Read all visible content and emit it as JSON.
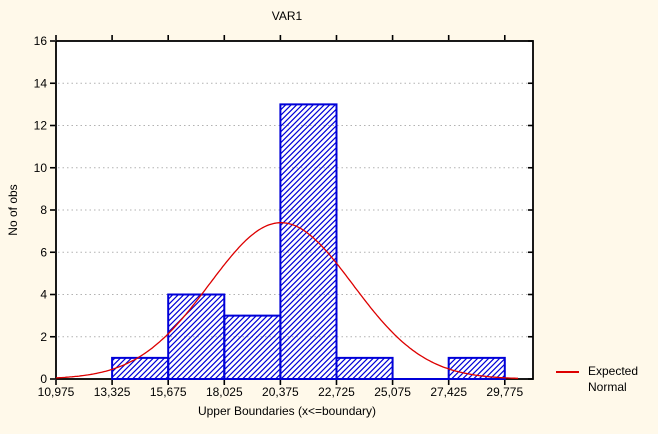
{
  "window": {
    "background_color": "#FFF9EA",
    "plot_background_color": "#FFFFFF"
  },
  "chart": {
    "title": "VAR1",
    "x_axis_label": "Upper Boundaries (x<=boundary)",
    "y_axis_label": "No of obs",
    "legend": {
      "line1": "Expected",
      "line2": "Normal",
      "swatch_color": "#DD0000"
    }
  },
  "chart_data": {
    "type": "bar",
    "title": "VAR1",
    "xlabel": "Upper Boundaries (x<=boundary)",
    "ylabel": "No of obs",
    "bin_edges": [
      13325,
      15675,
      18025,
      20375,
      22725,
      25075,
      27425,
      29775
    ],
    "counts": [
      1,
      4,
      3,
      13,
      1,
      0,
      1
    ],
    "x_ticks": [
      {
        "value": 10975,
        "label": "10,975"
      },
      {
        "value": 13325,
        "label": "13,325"
      },
      {
        "value": 15675,
        "label": "15,675"
      },
      {
        "value": 18025,
        "label": "18,025"
      },
      {
        "value": 20375,
        "label": "20,375"
      },
      {
        "value": 22725,
        "label": "22,725"
      },
      {
        "value": 25075,
        "label": "25,075"
      },
      {
        "value": 27425,
        "label": "27,425"
      },
      {
        "value": 29775,
        "label": "29,775"
      }
    ],
    "y_ticks": [
      0,
      2,
      4,
      6,
      8,
      10,
      12,
      14,
      16
    ],
    "grid_y": [
      2,
      4,
      6,
      8,
      10,
      12,
      14
    ],
    "xlim": [
      10975,
      30957
    ],
    "ylim": [
      0,
      16
    ],
    "grid": "horizontal-dotted",
    "legend_position": "right-bottom",
    "normal_curve": {
      "label": "Expected Normal",
      "mean": 20400,
      "sigma": 3000,
      "peak": 7.4,
      "x_start": 10975,
      "x_end": 30330,
      "color": "#DD0000"
    },
    "colors": {
      "bar_border": "#0000D8",
      "bar_hatch": "#0000D8",
      "bar_fill": "#FFFFFF",
      "gridline": "#B2B2B2",
      "frame": "#000000",
      "text": "#000000"
    }
  }
}
